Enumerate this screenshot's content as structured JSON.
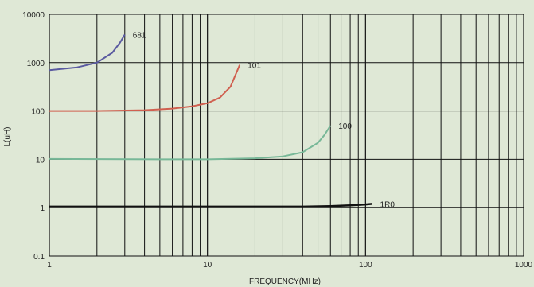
{
  "chart_data": {
    "type": "line",
    "xlabel": "FREQUENCY(MHz)",
    "ylabel": "L(uH)",
    "x_scale": "log",
    "y_scale": "log",
    "xlim": [
      1,
      1000
    ],
    "ylim": [
      0.1,
      10000
    ],
    "grid": true,
    "x_ticks": [
      "1",
      "10",
      "100",
      "1000"
    ],
    "y_ticks": [
      "0.1",
      "1",
      "10",
      "100",
      "1000",
      "10000"
    ],
    "colors": {
      "background": "#dfe8d6",
      "grid": "#111111",
      "681": "#5a5aa0",
      "101": "#d06050",
      "100": "#78b898",
      "1R0": "#111111"
    },
    "series": [
      {
        "name": "681",
        "x": [
          1,
          1.5,
          2,
          2.5,
          2.8,
          3.0
        ],
        "y": [
          700,
          800,
          1000,
          1600,
          2600,
          3800
        ]
      },
      {
        "name": "101",
        "x": [
          1,
          2,
          4,
          6,
          8,
          10,
          12,
          14,
          16
        ],
        "y": [
          100,
          100,
          104,
          112,
          125,
          145,
          190,
          320,
          900
        ]
      },
      {
        "name": "100",
        "x": [
          1,
          5,
          10,
          20,
          30,
          40,
          50,
          55,
          60
        ],
        "y": [
          10.2,
          10,
          10,
          10.5,
          11.5,
          14,
          22,
          32,
          50
        ]
      },
      {
        "name": "1R0",
        "x": [
          1,
          10,
          40,
          60,
          80,
          100,
          110
        ],
        "y": [
          1.05,
          1.05,
          1.05,
          1.08,
          1.12,
          1.17,
          1.2
        ]
      }
    ]
  }
}
